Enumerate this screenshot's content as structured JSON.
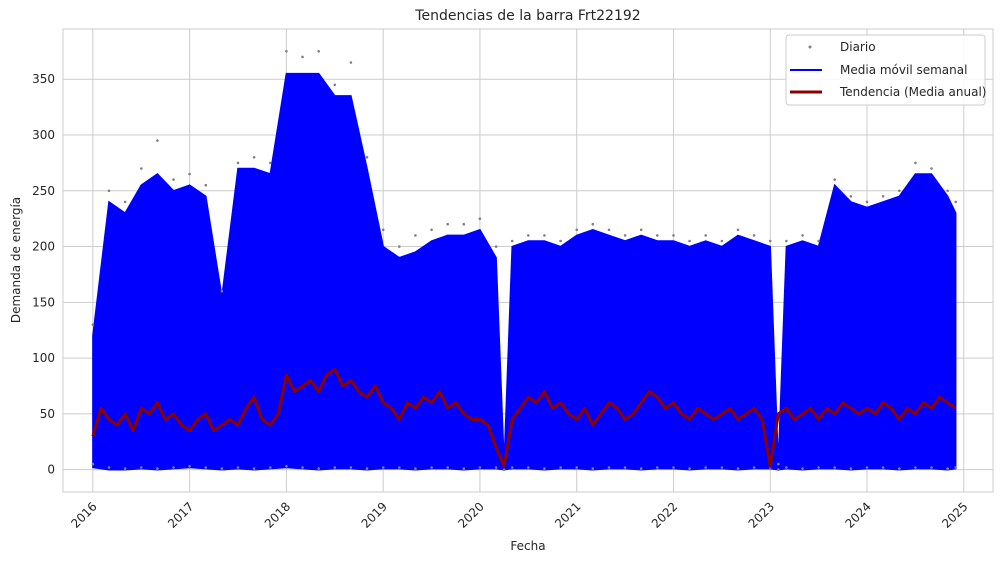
{
  "chart_data": {
    "type": "line",
    "title": "Tendencias de la barra Frt22192",
    "xlabel": "Fecha",
    "ylabel": "Demanda de energía",
    "xlim": [
      "2015-09-10",
      "2025-04-20"
    ],
    "ylim": [
      -20,
      395
    ],
    "x_ticks": [
      "2016",
      "2017",
      "2018",
      "2019",
      "2020",
      "2021",
      "2022",
      "2023",
      "2024",
      "2025"
    ],
    "y_ticks": [
      0,
      50,
      100,
      150,
      200,
      250,
      300,
      350
    ],
    "grid": true,
    "legend_position": "top-right",
    "colors": {
      "daily": "#808080",
      "weekly": "#0000ff",
      "trend": "#8b0000",
      "grid": "#cccccc",
      "frame": "#cccccc"
    },
    "series": [
      {
        "name": "Diario",
        "style": "points",
        "x": [
          "2016-01",
          "2016-03",
          "2016-05",
          "2016-07",
          "2016-09",
          "2016-11",
          "2017-01",
          "2017-03",
          "2017-05",
          "2017-07",
          "2017-09",
          "2017-11",
          "2018-01",
          "2018-03",
          "2018-05",
          "2018-07",
          "2018-09",
          "2018-11",
          "2019-01",
          "2019-03",
          "2019-05",
          "2019-07",
          "2019-09",
          "2019-11",
          "2020-01",
          "2020-03",
          "2020-04",
          "2020-05",
          "2020-07",
          "2020-09",
          "2020-11",
          "2021-01",
          "2021-03",
          "2021-05",
          "2021-07",
          "2021-09",
          "2021-11",
          "2022-01",
          "2022-03",
          "2022-05",
          "2022-07",
          "2022-09",
          "2022-11",
          "2023-01",
          "2023-02",
          "2023-03",
          "2023-05",
          "2023-07",
          "2023-09",
          "2023-11",
          "2024-01",
          "2024-03",
          "2024-05",
          "2024-07",
          "2024-09",
          "2024-11",
          "2024-12"
        ],
        "upper_values": [
          130,
          250,
          240,
          270,
          295,
          260,
          265,
          255,
          160,
          275,
          280,
          275,
          375,
          370,
          375,
          345,
          365,
          280,
          215,
          200,
          210,
          215,
          220,
          220,
          225,
          200,
          5,
          205,
          210,
          210,
          205,
          215,
          220,
          215,
          210,
          215,
          210,
          210,
          205,
          210,
          205,
          215,
          210,
          205,
          5,
          205,
          210,
          205,
          260,
          245,
          240,
          245,
          250,
          275,
          270,
          250,
          240
        ],
        "lower_values": [
          5,
          2,
          1,
          2,
          1,
          2,
          3,
          2,
          1,
          2,
          1,
          2,
          3,
          2,
          1,
          2,
          2,
          1,
          2,
          2,
          1,
          2,
          2,
          1,
          2,
          2,
          0,
          2,
          2,
          1,
          2,
          2,
          1,
          2,
          2,
          1,
          2,
          2,
          1,
          2,
          2,
          1,
          2,
          2,
          0,
          2,
          1,
          2,
          2,
          1,
          2,
          2,
          1,
          2,
          2,
          1,
          2
        ]
      },
      {
        "name": "Media móvil semanal",
        "style": "line",
        "x": [
          "2016-01",
          "2016-03",
          "2016-05",
          "2016-07",
          "2016-09",
          "2016-11",
          "2017-01",
          "2017-03",
          "2017-05",
          "2017-07",
          "2017-09",
          "2017-11",
          "2018-01",
          "2018-03",
          "2018-05",
          "2018-07",
          "2018-09",
          "2018-11",
          "2019-01",
          "2019-03",
          "2019-05",
          "2019-07",
          "2019-09",
          "2019-11",
          "2020-01",
          "2020-03",
          "2020-04",
          "2020-05",
          "2020-07",
          "2020-09",
          "2020-11",
          "2021-01",
          "2021-03",
          "2021-05",
          "2021-07",
          "2021-09",
          "2021-11",
          "2022-01",
          "2022-03",
          "2022-05",
          "2022-07",
          "2022-09",
          "2022-11",
          "2023-01",
          "2023-02",
          "2023-03",
          "2023-05",
          "2023-07",
          "2023-09",
          "2023-11",
          "2024-01",
          "2024-03",
          "2024-05",
          "2024-07",
          "2024-09",
          "2024-11",
          "2024-12"
        ],
        "upper_values": [
          120,
          240,
          230,
          255,
          265,
          250,
          255,
          245,
          155,
          270,
          270,
          265,
          355,
          355,
          355,
          335,
          335,
          270,
          200,
          190,
          195,
          205,
          210,
          210,
          215,
          190,
          5,
          200,
          205,
          205,
          200,
          210,
          215,
          210,
          205,
          210,
          205,
          205,
          200,
          205,
          200,
          210,
          205,
          200,
          5,
          200,
          205,
          200,
          255,
          240,
          235,
          240,
          245,
          265,
          265,
          245,
          230
        ],
        "lower_values": [
          2,
          0,
          0,
          1,
          0,
          1,
          2,
          1,
          0,
          1,
          0,
          1,
          2,
          1,
          0,
          1,
          1,
          0,
          1,
          1,
          0,
          1,
          1,
          0,
          1,
          1,
          0,
          1,
          1,
          0,
          1,
          1,
          0,
          1,
          1,
          0,
          1,
          1,
          0,
          1,
          1,
          0,
          1,
          1,
          0,
          1,
          0,
          1,
          1,
          0,
          1,
          1,
          0,
          1,
          1,
          0,
          1
        ]
      },
      {
        "name": "Tendencia (Media anual)",
        "style": "line",
        "x": [
          "2016-01",
          "2016-02",
          "2016-03",
          "2016-04",
          "2016-05",
          "2016-06",
          "2016-07",
          "2016-08",
          "2016-09",
          "2016-10",
          "2016-11",
          "2016-12",
          "2017-01",
          "2017-02",
          "2017-03",
          "2017-04",
          "2017-05",
          "2017-06",
          "2017-07",
          "2017-08",
          "2017-09",
          "2017-10",
          "2017-11",
          "2017-12",
          "2018-01",
          "2018-02",
          "2018-03",
          "2018-04",
          "2018-05",
          "2018-06",
          "2018-07",
          "2018-08",
          "2018-09",
          "2018-10",
          "2018-11",
          "2018-12",
          "2019-01",
          "2019-02",
          "2019-03",
          "2019-04",
          "2019-05",
          "2019-06",
          "2019-07",
          "2019-08",
          "2019-09",
          "2019-10",
          "2019-11",
          "2019-12",
          "2020-01",
          "2020-02",
          "2020-03",
          "2020-04",
          "2020-05",
          "2020-06",
          "2020-07",
          "2020-08",
          "2020-09",
          "2020-10",
          "2020-11",
          "2020-12",
          "2021-01",
          "2021-02",
          "2021-03",
          "2021-04",
          "2021-05",
          "2021-06",
          "2021-07",
          "2021-08",
          "2021-09",
          "2021-10",
          "2021-11",
          "2021-12",
          "2022-01",
          "2022-02",
          "2022-03",
          "2022-04",
          "2022-05",
          "2022-06",
          "2022-07",
          "2022-08",
          "2022-09",
          "2022-10",
          "2022-11",
          "2022-12",
          "2023-01",
          "2023-02",
          "2023-03",
          "2023-04",
          "2023-05",
          "2023-06",
          "2023-07",
          "2023-08",
          "2023-09",
          "2023-10",
          "2023-11",
          "2023-12",
          "2024-01",
          "2024-02",
          "2024-03",
          "2024-04",
          "2024-05",
          "2024-06",
          "2024-07",
          "2024-08",
          "2024-09",
          "2024-10",
          "2024-11",
          "2024-12"
        ],
        "values": [
          30,
          55,
          45,
          40,
          50,
          35,
          55,
          50,
          60,
          45,
          50,
          40,
          35,
          45,
          50,
          35,
          40,
          45,
          40,
          55,
          65,
          45,
          40,
          50,
          85,
          70,
          75,
          80,
          70,
          85,
          90,
          75,
          80,
          70,
          65,
          75,
          60,
          55,
          45,
          60,
          55,
          65,
          60,
          70,
          55,
          60,
          50,
          45,
          45,
          40,
          20,
          3,
          45,
          55,
          65,
          60,
          70,
          55,
          60,
          50,
          45,
          55,
          40,
          50,
          60,
          55,
          45,
          50,
          60,
          70,
          65,
          55,
          60,
          50,
          45,
          55,
          50,
          45,
          50,
          55,
          45,
          50,
          55,
          45,
          3,
          50,
          55,
          45,
          50,
          55,
          45,
          55,
          50,
          60,
          55,
          50,
          55,
          50,
          60,
          55,
          45,
          55,
          50,
          60,
          55,
          65,
          60,
          55
        ]
      }
    ]
  }
}
